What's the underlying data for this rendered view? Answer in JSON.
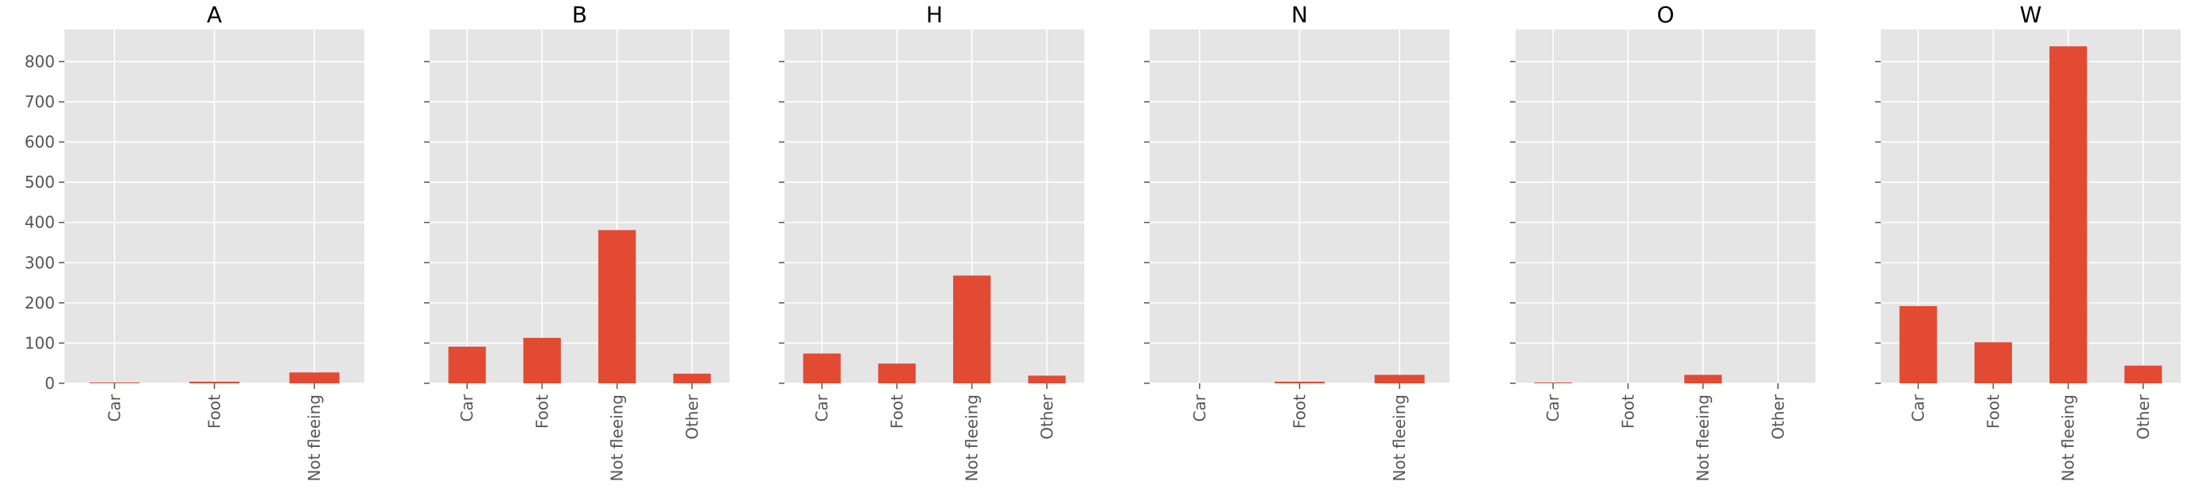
{
  "colors": {
    "panel_background": "#e5e5e5",
    "grid": "#ffffff",
    "bar": "#e24a33",
    "tick": "#555555"
  },
  "chart_data": [
    {
      "type": "bar",
      "title": "A",
      "categories": [
        "Car",
        "Foot",
        "Not fleeing"
      ],
      "values": [
        2,
        4,
        27
      ],
      "ylim": [
        0,
        880
      ],
      "yticks": [
        0,
        100,
        200,
        300,
        400,
        500,
        600,
        700,
        800
      ],
      "grid": true
    },
    {
      "type": "bar",
      "title": "B",
      "categories": [
        "Car",
        "Foot",
        "Not fleeing",
        "Other"
      ],
      "values": [
        91,
        113,
        381,
        24
      ],
      "ylim": [
        0,
        880
      ],
      "yticks": [
        0,
        100,
        200,
        300,
        400,
        500,
        600,
        700,
        800
      ],
      "grid": true
    },
    {
      "type": "bar",
      "title": "H",
      "categories": [
        "Car",
        "Foot",
        "Not fleeing",
        "Other"
      ],
      "values": [
        74,
        49,
        268,
        19
      ],
      "ylim": [
        0,
        880
      ],
      "yticks": [
        0,
        100,
        200,
        300,
        400,
        500,
        600,
        700,
        800
      ],
      "grid": true
    },
    {
      "type": "bar",
      "title": "N",
      "categories": [
        "Car",
        "Foot",
        "Not fleeing"
      ],
      "values": [
        0,
        4,
        21
      ],
      "ylim": [
        0,
        880
      ],
      "yticks": [
        0,
        100,
        200,
        300,
        400,
        500,
        600,
        700,
        800
      ],
      "grid": true
    },
    {
      "type": "bar",
      "title": "O",
      "categories": [
        "Car",
        "Foot",
        "Not fleeing",
        "Other"
      ],
      "values": [
        2,
        0,
        21,
        0
      ],
      "ylim": [
        0,
        880
      ],
      "yticks": [
        0,
        100,
        200,
        300,
        400,
        500,
        600,
        700,
        800
      ],
      "grid": true
    },
    {
      "type": "bar",
      "title": "W",
      "categories": [
        "Car",
        "Foot",
        "Not fleeing",
        "Other"
      ],
      "values": [
        192,
        102,
        838,
        44
      ],
      "ylim": [
        0,
        880
      ],
      "yticks": [
        0,
        100,
        200,
        300,
        400,
        500,
        600,
        700,
        800
      ],
      "grid": true
    }
  ]
}
